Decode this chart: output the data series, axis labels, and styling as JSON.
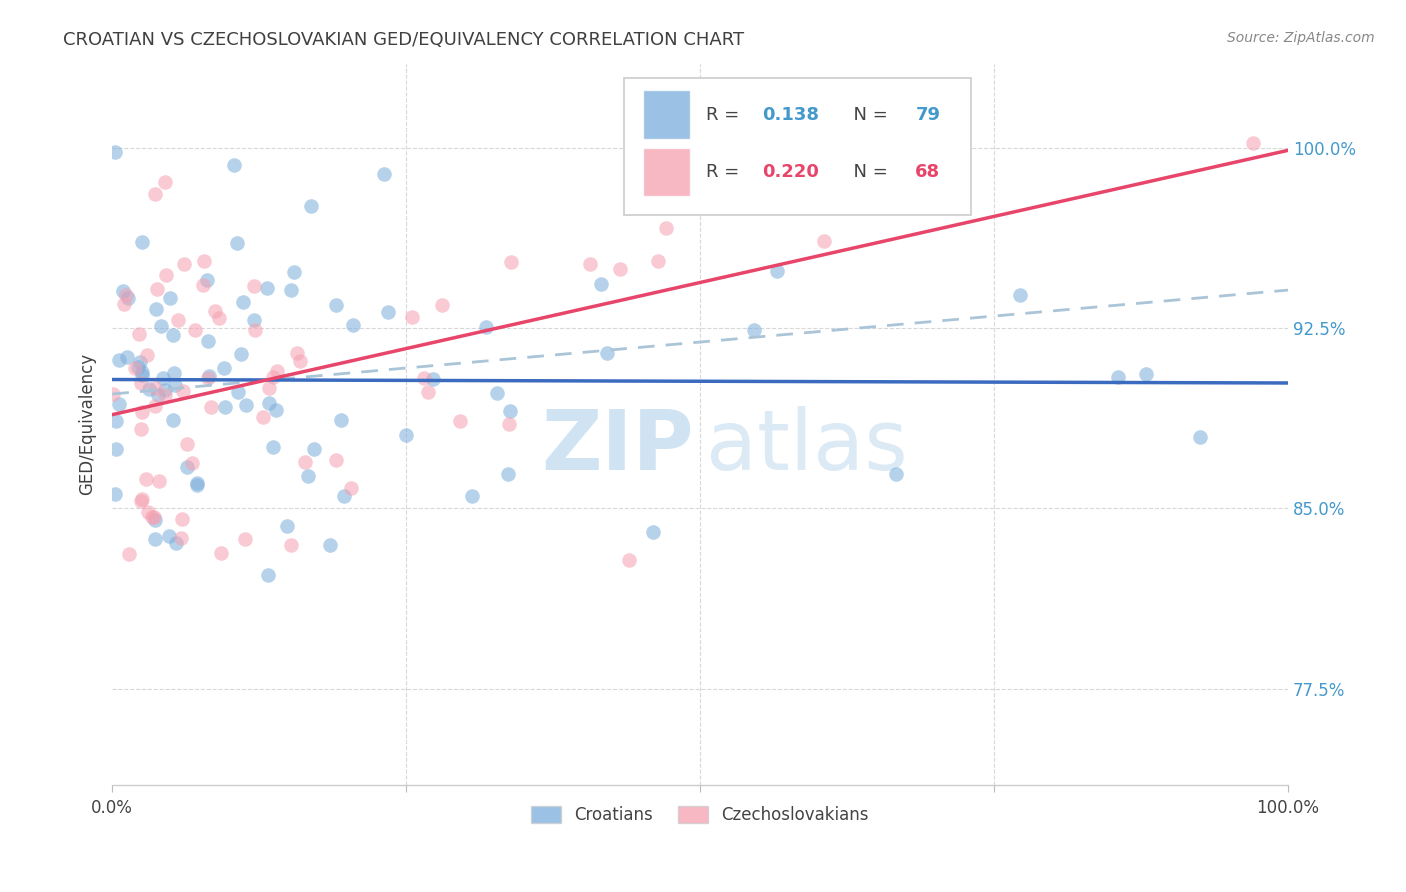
{
  "title": "CROATIAN VS CZECHOSLOVAKIAN GED/EQUIVALENCY CORRELATION CHART",
  "source": "Source: ZipAtlas.com",
  "ylabel": "GED/Equivalency",
  "yticks": [
    0.775,
    0.85,
    0.925,
    1.0
  ],
  "ytick_labels": [
    "77.5%",
    "85.0%",
    "92.5%",
    "100.0%"
  ],
  "xlim": [
    0.0,
    1.0
  ],
  "ylim": [
    0.735,
    1.035
  ],
  "blue_color": "#7aaddc",
  "pink_color": "#f5a0b0",
  "line_blue": "#3a6bbf",
  "line_pink": "#e8456a",
  "dashed_line_color": "#aac4d8",
  "background_color": "#ffffff",
  "grid_color": "#d8d8d8",
  "title_color": "#404040",
  "axis_label_color": "#404040",
  "ytick_color": "#4499cc",
  "source_color": "#888888",
  "R_blue": 0.138,
  "N_blue": 79,
  "R_pink": 0.22,
  "N_pink": 68,
  "watermark_zip_color": "#c8dff0",
  "watermark_atlas_color": "#c8dff0"
}
